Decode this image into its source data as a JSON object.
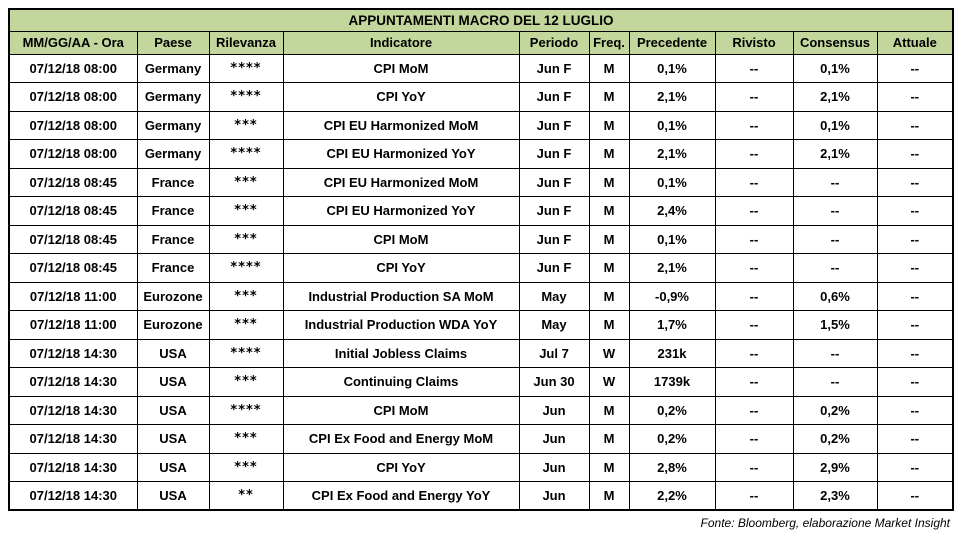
{
  "title": "APPUNTAMENTI MACRO DEL 12 LUGLIO",
  "footer": "Fonte: Bloomberg, elaborazione Market Insight",
  "colors": {
    "header_bg": "#c3d69b",
    "star_color": "#ff0000",
    "border_color": "#000000",
    "text_color": "#000000"
  },
  "table": {
    "columns": [
      "MM/GG/AA - Ora",
      "Paese",
      "Rilevanza",
      "Indicatore",
      "Periodo",
      "Freq.",
      "Precedente",
      "Rivisto",
      "Consensus",
      "Attuale"
    ],
    "rows": [
      {
        "datetime": "07/12/18 08:00",
        "country": "Germany",
        "relevance": "****",
        "indicator": "CPI MoM",
        "period": "Jun F",
        "freq": "M",
        "previous": "0,1%",
        "revised": "--",
        "consensus": "0,1%",
        "actual": "--"
      },
      {
        "datetime": "07/12/18 08:00",
        "country": "Germany",
        "relevance": "****",
        "indicator": "CPI YoY",
        "period": "Jun F",
        "freq": "M",
        "previous": "2,1%",
        "revised": "--",
        "consensus": "2,1%",
        "actual": "--"
      },
      {
        "datetime": "07/12/18 08:00",
        "country": "Germany",
        "relevance": "***",
        "indicator": "CPI EU Harmonized MoM",
        "period": "Jun F",
        "freq": "M",
        "previous": "0,1%",
        "revised": "--",
        "consensus": "0,1%",
        "actual": "--"
      },
      {
        "datetime": "07/12/18 08:00",
        "country": "Germany",
        "relevance": "****",
        "indicator": "CPI EU Harmonized YoY",
        "period": "Jun F",
        "freq": "M",
        "previous": "2,1%",
        "revised": "--",
        "consensus": "2,1%",
        "actual": "--"
      },
      {
        "datetime": "07/12/18 08:45",
        "country": "France",
        "relevance": "***",
        "indicator": "CPI EU Harmonized MoM",
        "period": "Jun F",
        "freq": "M",
        "previous": "0,1%",
        "revised": "--",
        "consensus": "--",
        "actual": "--"
      },
      {
        "datetime": "07/12/18 08:45",
        "country": "France",
        "relevance": "***",
        "indicator": "CPI EU Harmonized YoY",
        "period": "Jun F",
        "freq": "M",
        "previous": "2,4%",
        "revised": "--",
        "consensus": "--",
        "actual": "--"
      },
      {
        "datetime": "07/12/18 08:45",
        "country": "France",
        "relevance": "***",
        "indicator": "CPI MoM",
        "period": "Jun F",
        "freq": "M",
        "previous": "0,1%",
        "revised": "--",
        "consensus": "--",
        "actual": "--"
      },
      {
        "datetime": "07/12/18 08:45",
        "country": "France",
        "relevance": "****",
        "indicator": "CPI YoY",
        "period": "Jun F",
        "freq": "M",
        "previous": "2,1%",
        "revised": "--",
        "consensus": "--",
        "actual": "--"
      },
      {
        "datetime": "07/12/18 11:00",
        "country": "Eurozone",
        "relevance": "***",
        "indicator": "Industrial Production SA MoM",
        "period": "May",
        "freq": "M",
        "previous": "-0,9%",
        "revised": "--",
        "consensus": "0,6%",
        "actual": "--"
      },
      {
        "datetime": "07/12/18 11:00",
        "country": "Eurozone",
        "relevance": "***",
        "indicator": "Industrial Production WDA YoY",
        "period": "May",
        "freq": "M",
        "previous": "1,7%",
        "revised": "--",
        "consensus": "1,5%",
        "actual": "--"
      },
      {
        "datetime": "07/12/18 14:30",
        "country": "USA",
        "relevance": "****",
        "indicator": "Initial Jobless Claims",
        "period": "Jul 7",
        "freq": "W",
        "previous": "231k",
        "revised": "--",
        "consensus": "--",
        "actual": "--"
      },
      {
        "datetime": "07/12/18 14:30",
        "country": "USA",
        "relevance": "***",
        "indicator": "Continuing Claims",
        "period": "Jun 30",
        "freq": "W",
        "previous": "1739k",
        "revised": "--",
        "consensus": "--",
        "actual": "--"
      },
      {
        "datetime": "07/12/18 14:30",
        "country": "USA",
        "relevance": "****",
        "indicator": "CPI MoM",
        "period": "Jun",
        "freq": "M",
        "previous": "0,2%",
        "revised": "--",
        "consensus": "0,2%",
        "actual": "--"
      },
      {
        "datetime": "07/12/18 14:30",
        "country": "USA",
        "relevance": "***",
        "indicator": "CPI Ex Food and Energy MoM",
        "period": "Jun",
        "freq": "M",
        "previous": "0,2%",
        "revised": "--",
        "consensus": "0,2%",
        "actual": "--"
      },
      {
        "datetime": "07/12/18 14:30",
        "country": "USA",
        "relevance": "***",
        "indicator": "CPI YoY",
        "period": "Jun",
        "freq": "M",
        "previous": "2,8%",
        "revised": "--",
        "consensus": "2,9%",
        "actual": "--"
      },
      {
        "datetime": "07/12/18 14:30",
        "country": "USA",
        "relevance": "**",
        "indicator": "CPI Ex Food and Energy YoY",
        "period": "Jun",
        "freq": "M",
        "previous": "2,2%",
        "revised": "--",
        "consensus": "2,3%",
        "actual": "--"
      }
    ]
  }
}
